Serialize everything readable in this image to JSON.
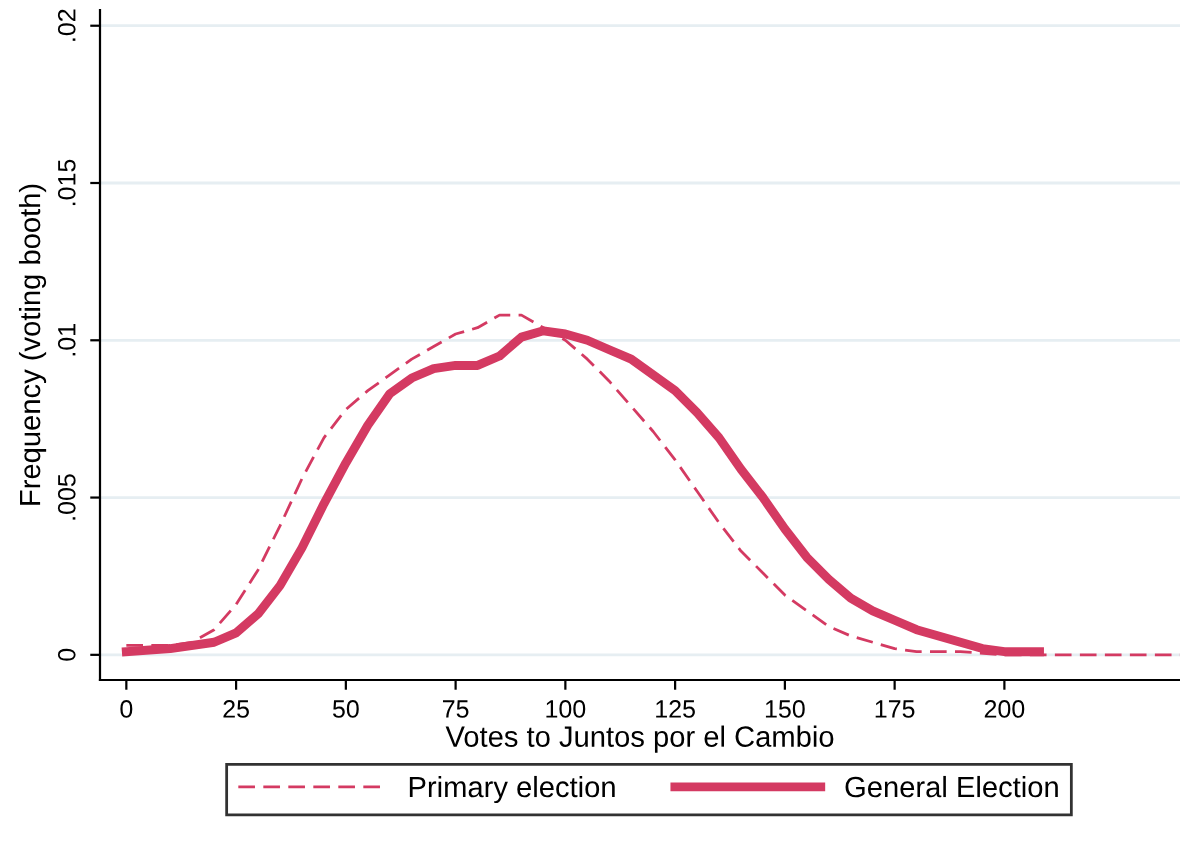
{
  "chart_data": {
    "type": "line",
    "xlabel": "Votes to Juntos por el Cambio",
    "ylabel": "Frequency (voting booth)",
    "xlim": [
      -6,
      240
    ],
    "xticks": [
      0,
      25,
      50,
      75,
      100,
      125,
      150,
      175,
      200
    ],
    "ylim": [
      -0.0008,
      0.0205
    ],
    "yticks": [
      0,
      {
        "value": 0.005,
        "label": ".005"
      },
      {
        "value": 0.01,
        "label": ".01"
      },
      {
        "value": 0.015,
        "label": ".015"
      },
      {
        "value": 0.02,
        "label": ".02"
      }
    ],
    "grid": "y",
    "legend": "bottom",
    "series": [
      {
        "name": "Primary election",
        "color": "#d43a62",
        "line_style": "dashed",
        "x": [
          0,
          10,
          15,
          20,
          25,
          30,
          35,
          40,
          45,
          50,
          55,
          60,
          65,
          70,
          75,
          80,
          85,
          90,
          95,
          100,
          105,
          110,
          115,
          120,
          125,
          130,
          135,
          140,
          145,
          150,
          155,
          160,
          165,
          170,
          175,
          180,
          190,
          200,
          240
        ],
        "values": [
          0.0003,
          0.0003,
          0.0004,
          0.0008,
          0.0016,
          0.0027,
          0.0041,
          0.0056,
          0.0069,
          0.0078,
          0.0084,
          0.0089,
          0.0094,
          0.0098,
          0.0102,
          0.0104,
          0.0108,
          0.0108,
          0.0104,
          0.01,
          0.0094,
          0.0087,
          0.0079,
          0.0071,
          0.0062,
          0.0052,
          0.0042,
          0.0033,
          0.0026,
          0.0019,
          0.0014,
          0.0009,
          0.0006,
          0.0004,
          0.0002,
          0.0001,
          0.0001,
          0,
          0
        ]
      },
      {
        "name": "General Election",
        "color": "#d43a62",
        "line_style": "solid",
        "x": [
          0,
          10,
          20,
          25,
          30,
          35,
          40,
          45,
          50,
          55,
          60,
          65,
          70,
          75,
          80,
          85,
          90,
          95,
          100,
          105,
          110,
          115,
          120,
          125,
          130,
          135,
          140,
          145,
          150,
          155,
          160,
          165,
          170,
          175,
          180,
          185,
          190,
          195,
          200,
          208
        ],
        "values": [
          0.0001,
          0.0002,
          0.0004,
          0.0007,
          0.0013,
          0.0022,
          0.0034,
          0.0048,
          0.0061,
          0.0073,
          0.0083,
          0.0088,
          0.0091,
          0.0092,
          0.0092,
          0.0095,
          0.0101,
          0.0103,
          0.0102,
          0.01,
          0.0097,
          0.0094,
          0.0089,
          0.0084,
          0.0077,
          0.0069,
          0.0059,
          0.005,
          0.004,
          0.0031,
          0.0024,
          0.0018,
          0.0014,
          0.0011,
          0.0008,
          0.0006,
          0.0004,
          0.0002,
          0.0001,
          0.0001
        ]
      }
    ]
  }
}
